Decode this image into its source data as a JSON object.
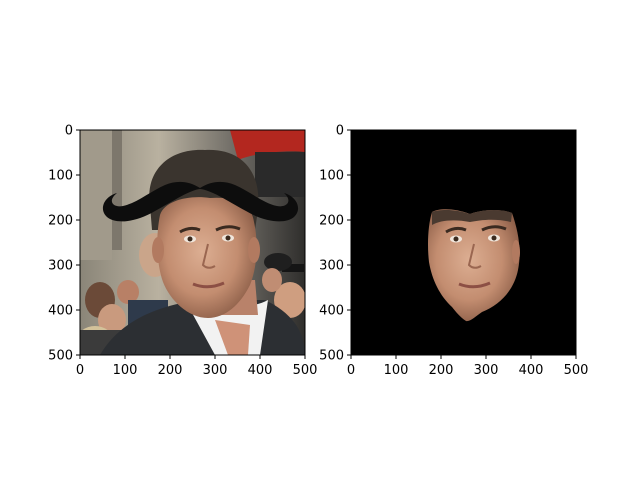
{
  "panels": [
    {
      "name": "left-image",
      "xticks": [
        "0",
        "100",
        "200",
        "300",
        "400",
        "500"
      ],
      "yticks": [
        "0",
        "100",
        "200",
        "300",
        "400",
        "500"
      ],
      "overlay": "mustache"
    },
    {
      "name": "right-image",
      "xticks": [
        "0",
        "100",
        "200",
        "300",
        "400",
        "500"
      ],
      "yticks": [
        "0",
        "100",
        "200",
        "300",
        "400",
        "500"
      ],
      "overlay": "face-mask"
    }
  ],
  "colors": {
    "mask_background": "#000000",
    "mustache": "#0d0d0d",
    "skin": "#c9967a",
    "hair": "#3a342e",
    "jacket": "#2c2f33",
    "shirt": "#f2f2f2"
  }
}
